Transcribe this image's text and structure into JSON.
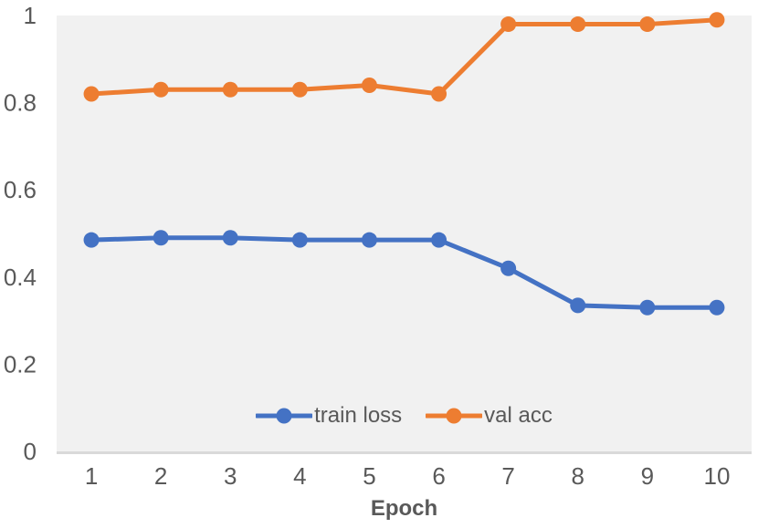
{
  "chart_data": {
    "type": "line",
    "title": "",
    "xlabel": "Epoch",
    "ylabel": "",
    "x": [
      1,
      2,
      3,
      4,
      5,
      6,
      7,
      8,
      9,
      10
    ],
    "xtick_labels": [
      "1",
      "2",
      "3",
      "4",
      "5",
      "6",
      "7",
      "8",
      "9",
      "10"
    ],
    "series": [
      {
        "name": "train loss",
        "color": "#4472C4",
        "values": [
          0.485,
          0.49,
          0.49,
          0.485,
          0.485,
          0.485,
          0.42,
          0.335,
          0.33,
          0.33
        ]
      },
      {
        "name": "val acc",
        "color": "#ED7D31",
        "values": [
          0.82,
          0.83,
          0.83,
          0.83,
          0.84,
          0.82,
          0.98,
          0.98,
          0.98,
          0.99
        ]
      }
    ],
    "ylim": [
      0,
      1
    ],
    "yticks": [
      0,
      0.2,
      0.4,
      0.6,
      0.8,
      1
    ],
    "ytick_labels": [
      "0",
      "0.2",
      "0.4",
      "0.6",
      "0.8",
      "1"
    ],
    "grid": false,
    "legend_position": "bottom-center-inside",
    "marker": "circle",
    "plot_bg_color": "#F1F1F1",
    "axis_line_color": "#D9D9D9",
    "text_color": "#595959"
  }
}
